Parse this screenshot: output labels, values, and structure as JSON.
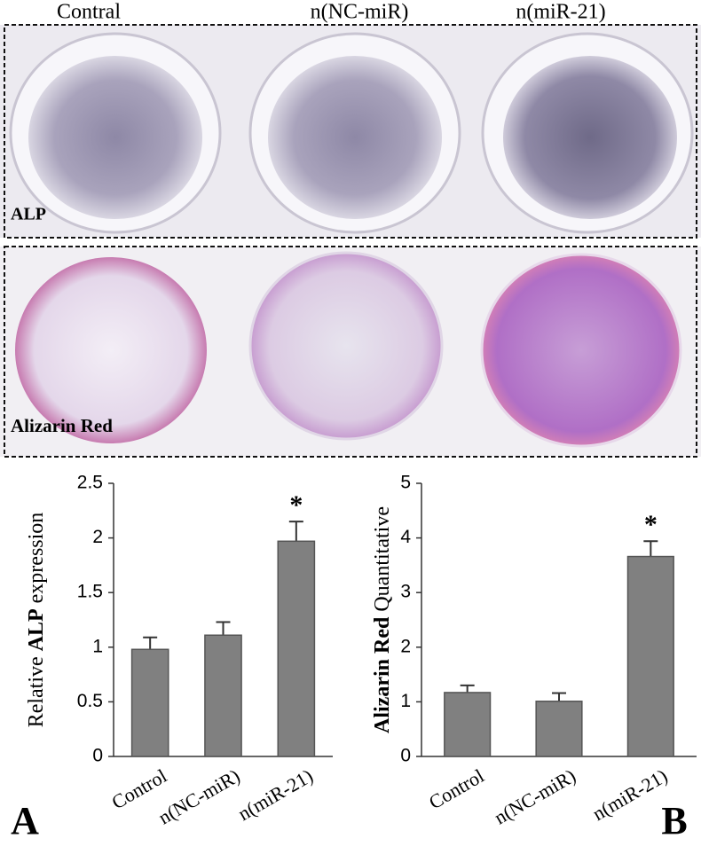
{
  "photo_panel": {
    "column_labels": [
      "Contral",
      "n(NC-miR)",
      "n(miR-21)"
    ],
    "row_labels": [
      "ALP",
      "Alizarin Red"
    ]
  },
  "chart_data": [
    {
      "type": "bar",
      "panel_label": "A",
      "ylabel_parts": [
        "Relative",
        "ALP",
        "expression"
      ],
      "ylabel_bold": [
        false,
        true,
        false
      ],
      "categories": [
        "Control",
        "n(NC-miR)",
        "n(miR-21)"
      ],
      "values": [
        0.98,
        1.11,
        1.97
      ],
      "errors": [
        0.11,
        0.12,
        0.18
      ],
      "significance": [
        null,
        null,
        "*"
      ],
      "color": "#808080",
      "ylim": [
        0,
        2.5
      ],
      "yticks": [
        0,
        0.5,
        1,
        1.5,
        2,
        2.5
      ],
      "grid": false
    },
    {
      "type": "bar",
      "panel_label": "B",
      "ylabel_parts": [
        "Alizarin Red",
        "Quantitative"
      ],
      "ylabel_bold": [
        true,
        false
      ],
      "categories": [
        "Control",
        "n(NC-miR)",
        "n(miR-21)"
      ],
      "values": [
        1.17,
        1.01,
        3.66
      ],
      "errors": [
        0.13,
        0.15,
        0.28
      ],
      "significance": [
        null,
        null,
        "*"
      ],
      "color": "#808080",
      "ylim": [
        0,
        5
      ],
      "yticks": [
        0,
        1,
        2,
        3,
        4,
        5
      ],
      "grid": false
    }
  ]
}
